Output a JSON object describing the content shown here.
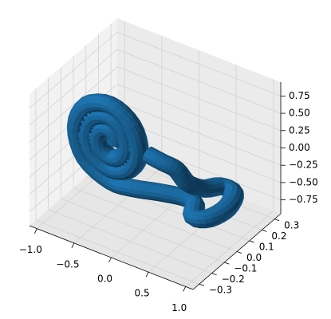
{
  "chart_data": {
    "type": "tube3d",
    "color": "#1f77b4",
    "tube_radius": 0.12,
    "x": [
      -0.51,
      -0.524,
      -0.6,
      -0.702,
      -0.762,
      -0.727,
      -0.6,
      -0.447,
      -0.366,
      -0.422,
      -0.6,
      -0.804,
      -0.906,
      -0.829,
      -0.6,
      -0.345,
      -0.222,
      -0.32,
      -0.6,
      -0.905,
      -1.05,
      -0.931,
      -0.6,
      -0.3,
      0.0,
      0.3,
      0.45,
      0.55,
      0.72,
      0.8,
      0.72,
      0.55,
      0.45,
      0.35,
      0.25,
      0.1,
      -0.1
    ],
    "y": [
      0,
      0,
      0,
      0,
      0,
      0,
      0,
      0,
      0,
      0,
      0,
      0,
      0,
      0,
      0,
      0,
      0,
      0,
      0,
      0,
      0,
      0,
      0,
      0.0,
      0.03,
      0.06,
      0.05,
      -0.02,
      0.0,
      0.1,
      0.2,
      0.2,
      0.12,
      0.05,
      0.02,
      0.0,
      0.0
    ],
    "z": [
      -0.05,
      0.043,
      0.104,
      0.074,
      -0.05,
      -0.206,
      -0.292,
      -0.237,
      -0.05,
      0.168,
      0.28,
      0.199,
      -0.05,
      -0.33,
      -0.468,
      -0.361,
      -0.05,
      0.292,
      0.456,
      0.323,
      -0.05,
      -0.454,
      -0.644,
      -0.62,
      -0.6,
      -0.6,
      -0.62,
      -0.65,
      -0.63,
      -0.6,
      -0.57,
      -0.55,
      -0.5,
      -0.35,
      -0.15,
      -0.08,
      -0.05
    ],
    "xlim": [
      -1.1,
      1.1
    ],
    "ylim": [
      -0.35,
      0.35
    ],
    "zlim": [
      -0.95,
      0.95
    ],
    "xticks": [
      {
        "value": -1,
        "label": "−1.0"
      },
      {
        "value": -0.5,
        "label": "−0.5"
      },
      {
        "value": 0,
        "label": "0.0"
      },
      0.5,
      {
        "value": 1,
        "label": "1.0"
      }
    ],
    "yticks": [
      {
        "value": -0.3,
        "label": "−0.3"
      },
      {
        "value": -0.2,
        "label": "−0.2"
      },
      {
        "value": -0.1,
        "label": "−0.1"
      },
      {
        "value": 0,
        "label": "0.0"
      },
      0.1,
      0.2,
      0.3
    ],
    "zticks": [
      {
        "value": -0.75,
        "label": "−0.75"
      },
      {
        "value": -0.5,
        "label": "−0.50"
      },
      {
        "value": -0.25,
        "label": "−0.25"
      },
      {
        "value": 0,
        "label": "0.00"
      },
      0.25,
      {
        "value": 0.5,
        "label": "0.50"
      },
      0.75
    ],
    "grid": true
  }
}
